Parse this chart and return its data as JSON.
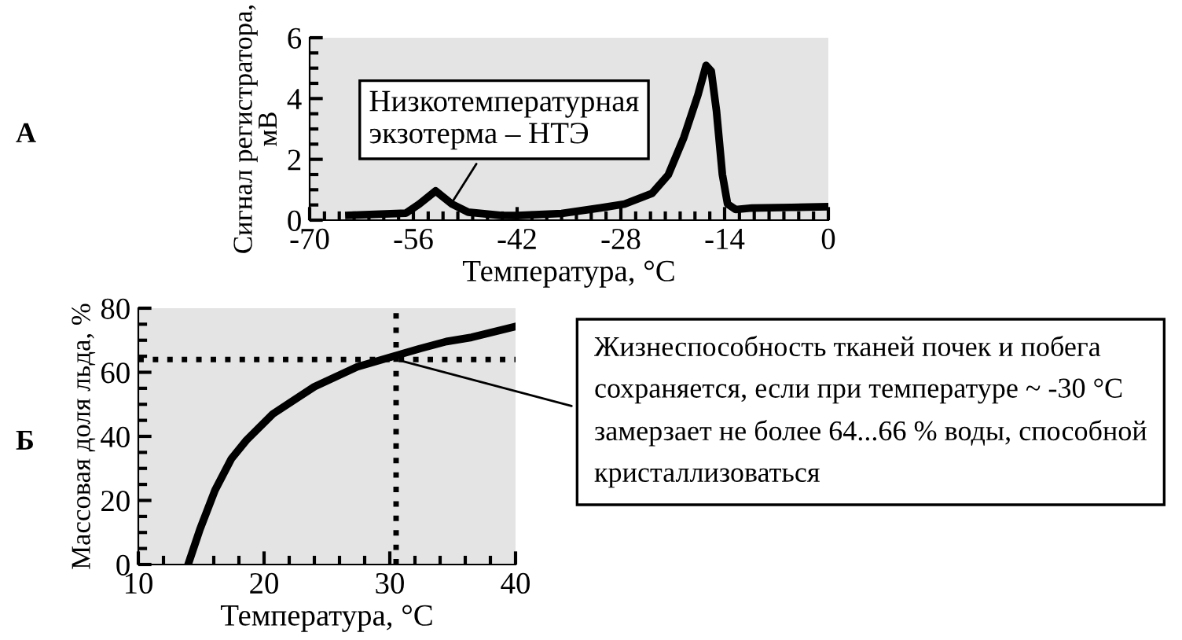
{
  "chart_data": [
    {
      "type": "line",
      "xlabel": "Температура, °C",
      "ylabel": "Сигнал регистратора,\nмВ",
      "x": [
        -64.7,
        -57.0,
        -55.2,
        -53.0,
        -50.8,
        -48.6,
        -44.3,
        -42,
        -36,
        -31.1,
        -27.5,
        -23.8,
        -21.6,
        -19.5,
        -17.6,
        -16.5,
        -15.8,
        -15.1,
        -14.3,
        -13.6,
        -12.5,
        -10.3,
        -5,
        0
      ],
      "series": [
        {
          "color": "#000000",
          "values": [
            0.16,
            0.23,
            0.53,
            0.96,
            0.53,
            0.26,
            0.16,
            0.15,
            0.22,
            0.39,
            0.53,
            0.88,
            1.49,
            2.72,
            4.12,
            5.09,
            4.9,
            3.6,
            1.5,
            0.53,
            0.35,
            0.4,
            0.42,
            0.44
          ]
        }
      ],
      "xlim": [
        -70,
        0
      ],
      "xticks": [
        -70,
        -56,
        -42,
        -28,
        -14,
        0
      ],
      "ylim": [
        0,
        6
      ],
      "yticks": [
        0,
        2,
        4,
        6
      ],
      "grid": false,
      "marker": "none",
      "line_style": "solid",
      "annotations": [
        "А",
        {
          "text": "Низкотемпературная\nэкзотерма – НТЭ",
          "x": -51,
          "y": 0.5
        }
      ]
    },
    {
      "type": "line",
      "xlabel": "Температура, °C",
      "ylabel": "Массовая доля льда, %",
      "x": [
        13.96,
        14.9,
        16.1,
        17.4,
        18.6,
        20.7,
        24.0,
        27.4,
        30.3,
        32.4,
        34.5,
        36.5,
        40
      ],
      "series": [
        {
          "color": "#000000",
          "values": [
            0,
            11,
            23.2,
            33,
            38.8,
            47,
            55.5,
            61.7,
            65,
            67.4,
            69.6,
            70.9,
            74.3
          ]
        }
      ],
      "xlim": [
        10,
        40
      ],
      "xticks": [
        10,
        20,
        30,
        40
      ],
      "ylim": [
        0,
        80
      ],
      "yticks": [
        0,
        20,
        40,
        60,
        80
      ],
      "grid": false,
      "marker": "none",
      "line_style": "solid",
      "ref_lines": [
        {
          "axis": "y",
          "value": 64,
          "color": "#000000",
          "line_style": "dotted"
        },
        {
          "axis": "x",
          "value": 30.5,
          "color": "#000000",
          "line_style": "dotted"
        }
      ],
      "annotations": [
        "Б",
        {
          "text": "Жизнеспособность тканей почек и побега\nсохраняется, если при температуре ~ -30 °C\nзамерзает не более 64...66 % воды, способной\nкристаллизоваться",
          "x": 30.5,
          "y": 64
        }
      ]
    }
  ]
}
